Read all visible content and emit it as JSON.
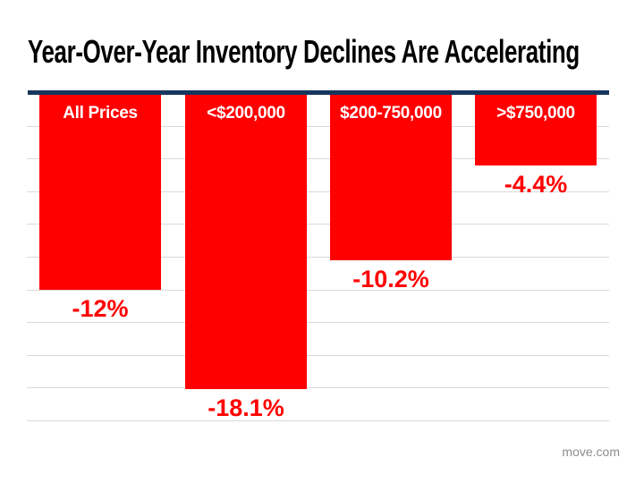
{
  "slide": {
    "source": "move.com"
  },
  "chart_data": {
    "type": "bar",
    "title": "Year-Over-Year Inventory Declines Are Accelerating",
    "categories": [
      "All Prices",
      "<$200,000",
      "$200-750,000",
      ">$750,000"
    ],
    "values": [
      -12,
      -18.1,
      -10.2,
      -4.4
    ],
    "value_labels": [
      "-12%",
      "-18.1%",
      "-10.2%",
      "-4.4%"
    ],
    "xlabel": "",
    "ylabel": "",
    "ylim": [
      -20,
      0
    ],
    "gridline_interval_percent": 2,
    "grid": true,
    "legend_position": "none",
    "bar_direction": "down",
    "category_label_position": "inside-top",
    "value_label_position": "below-bar",
    "colors": {
      "bar": "#ff0000",
      "category_label": "#ffffff",
      "value_label": "#ff0000",
      "zero_baseline": "#17365d",
      "gridline": "#d9d9d9",
      "title": "#000000",
      "source_credit": "#8c8c8c"
    }
  }
}
